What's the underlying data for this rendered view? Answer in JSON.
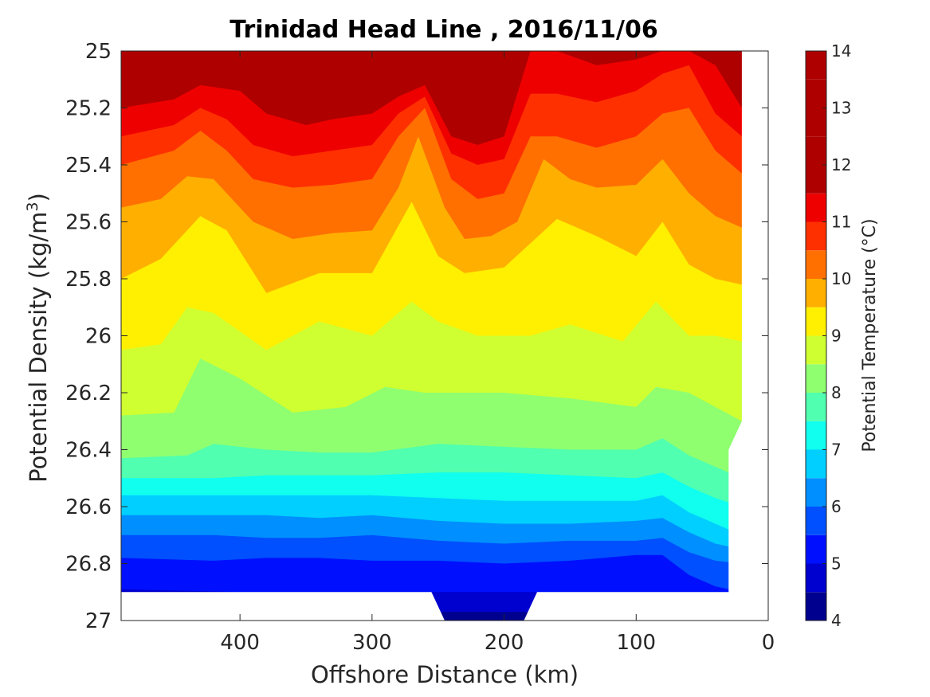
{
  "chart_data": {
    "type": "contour",
    "title": "Trinidad Head Line , 2016/11/06",
    "xlabel": "Offshore Distance (km)",
    "ylabel_main": "Potential Density (kg/m",
    "ylabel_sup": "3",
    "ylabel_close": ")",
    "colorbar_label": "Potential Temperature (°C)",
    "xlim": [
      490,
      0
    ],
    "x_reversed": true,
    "ylim": [
      25,
      27
    ],
    "y_reversed": true,
    "x_ticks": [
      400,
      300,
      200,
      100,
      0
    ],
    "x_tick_labels": [
      "400",
      "300",
      "200",
      "100",
      "0"
    ],
    "y_ticks": [
      25,
      25.2,
      25.4,
      25.6,
      25.8,
      26,
      26.2,
      26.4,
      26.6,
      26.8,
      27
    ],
    "y_tick_labels": [
      "25",
      "25.2",
      "25.4",
      "25.6",
      "25.8",
      "26",
      "26.2",
      "26.4",
      "26.6",
      "26.8",
      "27"
    ],
    "levels": [
      4,
      4.5,
      5,
      5.5,
      6,
      6.5,
      7,
      7.5,
      8,
      8.5,
      9,
      9.5,
      10,
      10.5,
      11,
      11.5,
      12,
      12.5,
      13,
      13.5,
      14
    ],
    "colorbar_ticks": [
      4,
      5,
      6,
      7,
      8,
      9,
      10,
      11,
      12,
      13,
      14
    ],
    "colorbar_tick_labels": [
      "4",
      "5",
      "6",
      "7",
      "8",
      "9",
      "10",
      "11",
      "12",
      "13",
      "14"
    ],
    "band_colors": [
      "#00008f",
      "#0000cf",
      "#0010ff",
      "#0050ff",
      "#008fff",
      "#00cfff",
      "#10ffef",
      "#50ffaf",
      "#8fff70",
      "#cfff30",
      "#ffef00",
      "#ffaf00",
      "#ff7000",
      "#ff3000",
      "#ef0000",
      "#af0000"
    ],
    "data_gap_density": 26.9,
    "contour_isopycnals": [
      {
        "level": 4.5,
        "x": [
          490,
          250,
          180,
          0
        ],
        "y": [
          26.9,
          26.97,
          26.97,
          26.9
        ]
      },
      {
        "level": 5,
        "x": [
          490,
          400,
          300,
          250,
          180,
          0
        ],
        "y": [
          26.89,
          26.9,
          26.9,
          26.9,
          26.9,
          26.9
        ]
      },
      {
        "level": 5.5,
        "x": [
          490,
          420,
          380,
          340,
          300,
          250,
          200,
          150,
          100,
          80,
          60,
          40,
          20
        ],
        "y": [
          26.78,
          26.79,
          26.78,
          26.78,
          26.79,
          26.79,
          26.8,
          26.79,
          26.77,
          26.77,
          26.84,
          26.88,
          26.9
        ]
      },
      {
        "level": 6,
        "x": [
          490,
          420,
          380,
          340,
          300,
          250,
          200,
          150,
          100,
          80,
          60,
          40,
          20
        ],
        "y": [
          26.7,
          26.7,
          26.71,
          26.71,
          26.7,
          26.72,
          26.73,
          26.72,
          26.72,
          26.71,
          26.76,
          26.79,
          26.8
        ]
      },
      {
        "level": 6.5,
        "x": [
          490,
          420,
          380,
          340,
          300,
          250,
          200,
          150,
          100,
          80,
          60,
          40,
          20
        ],
        "y": [
          26.63,
          26.63,
          26.63,
          26.64,
          26.63,
          26.65,
          26.66,
          26.66,
          26.65,
          26.64,
          26.69,
          26.73,
          26.75
        ]
      },
      {
        "level": 7,
        "x": [
          490,
          420,
          380,
          340,
          300,
          250,
          200,
          150,
          100,
          80,
          60,
          40,
          20
        ],
        "y": [
          26.56,
          26.56,
          26.56,
          26.56,
          26.56,
          26.57,
          26.58,
          26.58,
          26.58,
          26.56,
          26.62,
          26.66,
          26.7
        ]
      },
      {
        "level": 7.5,
        "x": [
          490,
          420,
          380,
          340,
          300,
          250,
          200,
          150,
          100,
          80,
          60,
          40,
          20
        ],
        "y": [
          26.5,
          26.5,
          26.49,
          26.49,
          26.49,
          26.48,
          26.48,
          26.49,
          26.5,
          26.48,
          26.53,
          26.57,
          26.6
        ]
      },
      {
        "level": 8,
        "x": [
          490,
          440,
          420,
          380,
          340,
          300,
          250,
          200,
          150,
          100,
          80,
          60,
          40,
          20
        ],
        "y": [
          26.43,
          26.42,
          26.38,
          26.4,
          26.41,
          26.41,
          26.38,
          26.39,
          26.4,
          26.4,
          26.36,
          26.42,
          26.46,
          26.5
        ]
      },
      {
        "level": 8.5,
        "x": [
          490,
          450,
          430,
          400,
          360,
          320,
          290,
          260,
          230,
          200,
          150,
          100,
          85,
          60,
          40,
          20
        ],
        "y": [
          26.28,
          26.27,
          26.08,
          26.15,
          26.27,
          26.25,
          26.18,
          26.2,
          26.2,
          26.2,
          26.22,
          26.25,
          26.18,
          26.2,
          26.25,
          26.3
        ]
      },
      {
        "level": 9,
        "x": [
          490,
          460,
          440,
          420,
          380,
          340,
          300,
          270,
          250,
          220,
          180,
          150,
          110,
          85,
          60,
          40,
          20
        ],
        "y": [
          26.05,
          26.03,
          25.9,
          25.92,
          26.05,
          25.95,
          26.0,
          25.88,
          25.95,
          26.0,
          26.0,
          25.96,
          26.02,
          25.88,
          26.0,
          26.0,
          26.02
        ]
      },
      {
        "level": 9.5,
        "x": [
          490,
          460,
          430,
          410,
          380,
          340,
          300,
          270,
          250,
          230,
          200,
          160,
          130,
          100,
          80,
          60,
          40,
          20
        ],
        "y": [
          25.8,
          25.73,
          25.58,
          25.63,
          25.85,
          25.78,
          25.78,
          25.53,
          25.72,
          25.78,
          25.76,
          25.59,
          25.65,
          25.72,
          25.6,
          25.75,
          25.8,
          25.82
        ]
      },
      {
        "level": 10,
        "x": [
          490,
          460,
          440,
          420,
          390,
          360,
          330,
          300,
          280,
          265,
          245,
          230,
          210,
          190,
          170,
          150,
          130,
          100,
          80,
          60,
          40,
          20
        ],
        "y": [
          25.55,
          25.52,
          25.44,
          25.45,
          25.6,
          25.66,
          25.64,
          25.63,
          25.48,
          25.3,
          25.55,
          25.66,
          25.65,
          25.6,
          25.38,
          25.45,
          25.48,
          25.47,
          25.38,
          25.5,
          25.58,
          25.62
        ]
      },
      {
        "level": 10.5,
        "x": [
          490,
          450,
          430,
          410,
          390,
          360,
          330,
          300,
          280,
          260,
          240,
          220,
          200,
          180,
          160,
          130,
          100,
          80,
          60,
          40,
          20
        ],
        "y": [
          25.4,
          25.35,
          25.28,
          25.35,
          25.45,
          25.48,
          25.47,
          25.45,
          25.3,
          25.2,
          25.45,
          25.52,
          25.5,
          25.3,
          25.3,
          25.34,
          25.3,
          25.22,
          25.2,
          25.35,
          25.43
        ]
      },
      {
        "level": 11,
        "x": [
          490,
          450,
          430,
          410,
          390,
          360,
          330,
          300,
          280,
          260,
          240,
          220,
          200,
          180,
          160,
          130,
          100,
          80,
          60,
          40,
          20
        ],
        "y": [
          25.3,
          25.26,
          25.2,
          25.24,
          25.33,
          25.37,
          25.35,
          25.33,
          25.22,
          25.16,
          25.36,
          25.4,
          25.38,
          25.15,
          25.15,
          25.18,
          25.14,
          25.08,
          25.05,
          25.22,
          25.3
        ]
      },
      {
        "level": 11.5,
        "x": [
          490,
          450,
          430,
          400,
          380,
          350,
          330,
          300,
          280,
          260,
          240,
          220,
          200,
          180,
          160,
          130,
          100,
          80,
          60,
          40,
          20
        ],
        "y": [
          25.2,
          25.17,
          25.12,
          25.14,
          25.22,
          25.26,
          25.24,
          25.22,
          25.16,
          25.12,
          25.3,
          25.33,
          25.3,
          25.0,
          25.0,
          25.05,
          25.03,
          25.0,
          25.0,
          25.05,
          25.2
        ]
      },
      {
        "level": 12,
        "x": [
          490,
          450,
          430,
          400,
          370,
          340,
          310,
          290,
          270,
          250,
          230,
          210,
          195,
          180
        ],
        "y": [
          25.1,
          25.08,
          25.04,
          25.06,
          25.12,
          25.15,
          25.13,
          25.1,
          25.06,
          25.1,
          25.2,
          25.18,
          25.08,
          25.0
        ]
      },
      {
        "level": 12.5,
        "x": [
          440,
          400,
          370,
          340,
          310,
          290,
          250,
          235,
          215,
          200,
          190
        ],
        "y": [
          25.0,
          25.02,
          25.06,
          25.08,
          25.07,
          25.03,
          25.05,
          25.1,
          25.07,
          25.02,
          25.0
        ]
      }
    ],
    "colormap_name": "jet"
  }
}
